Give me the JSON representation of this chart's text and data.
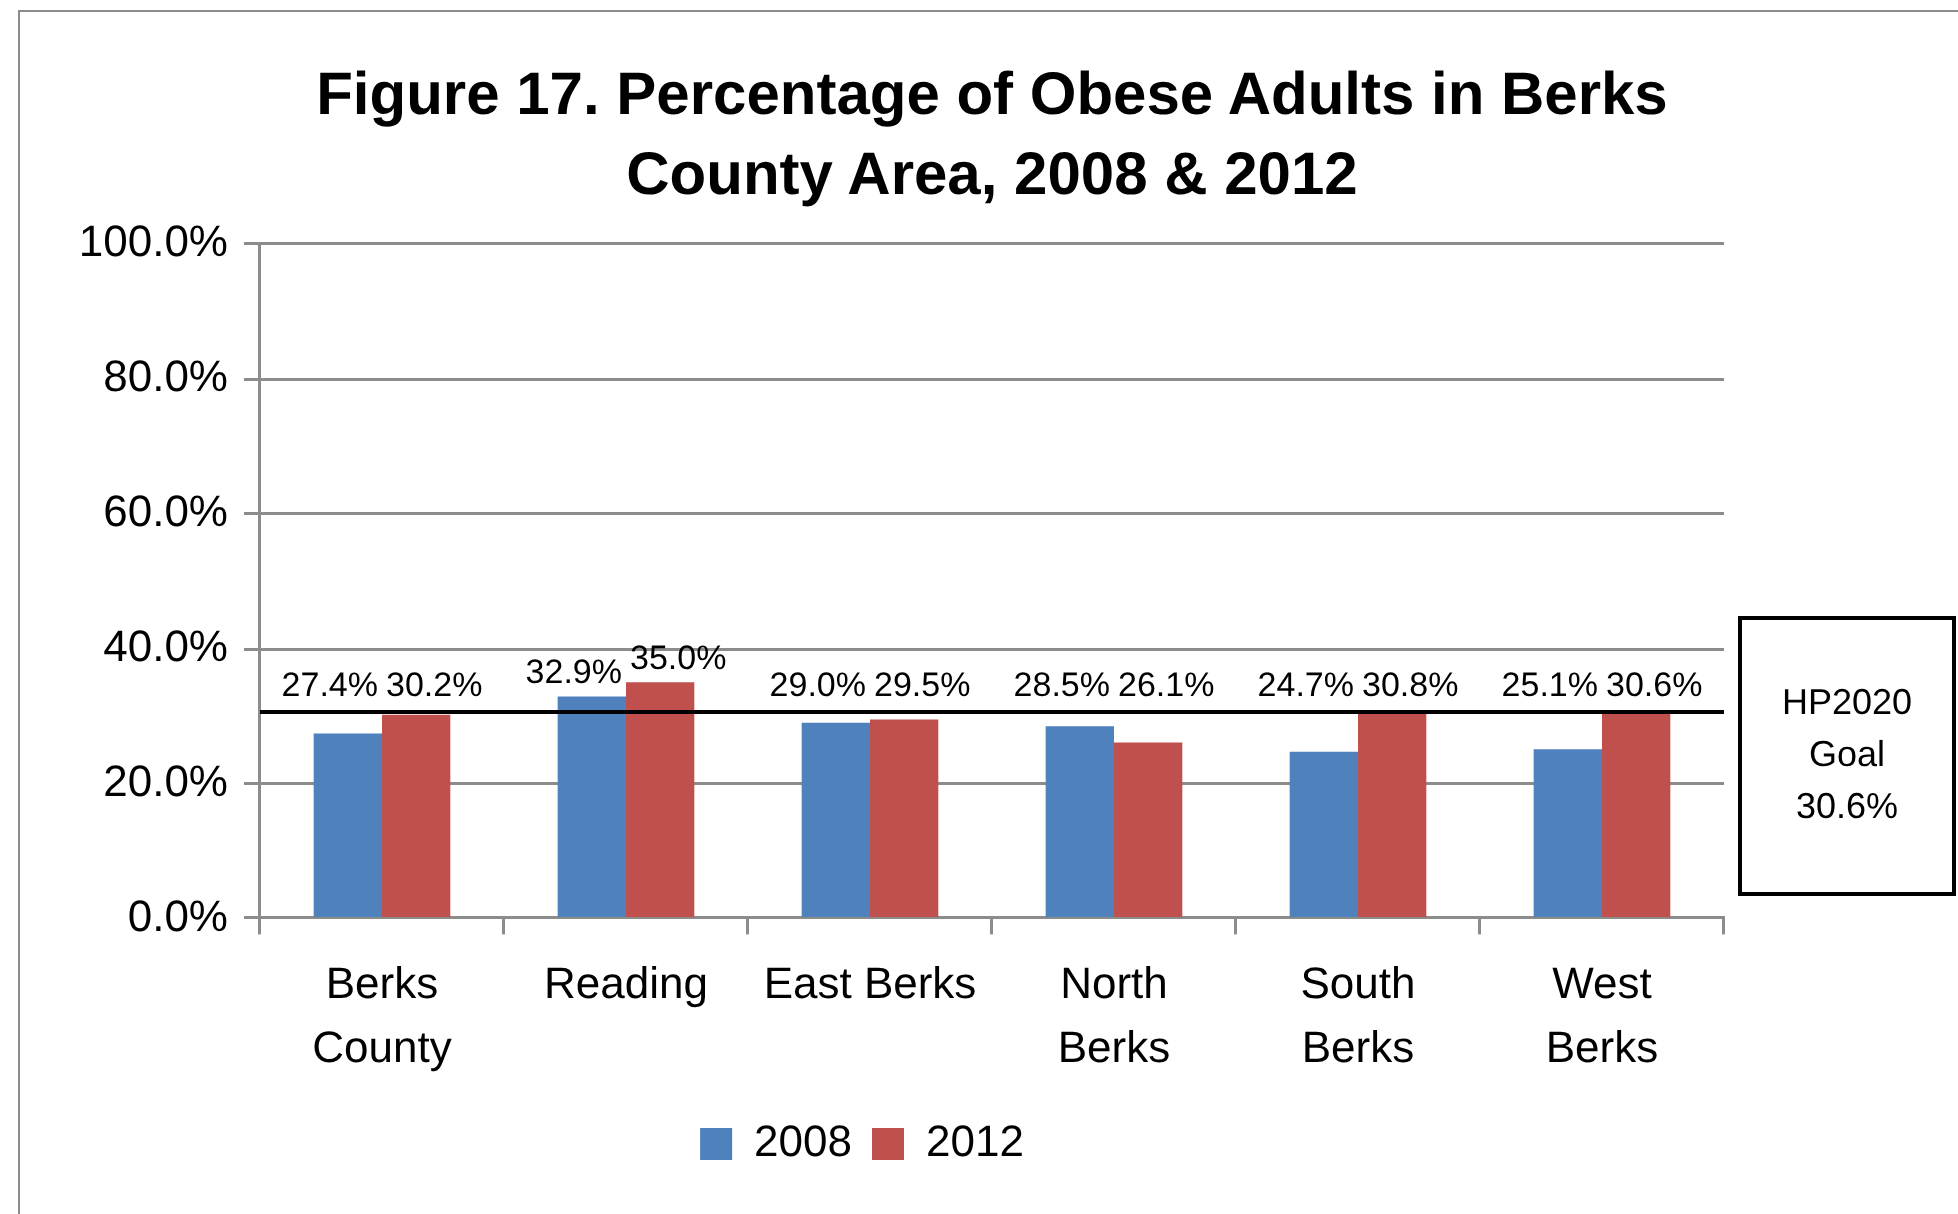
{
  "chart_data": {
    "type": "bar",
    "title": "Figure 17. Percentage of Obese Adults in Berks County Area, 2008 & 2012",
    "categories": [
      "Berks County",
      "Reading",
      "East Berks",
      "North Berks",
      "South Berks",
      "West Berks"
    ],
    "series": [
      {
        "name": "2008",
        "color": "#4f81bd",
        "values": [
          27.4,
          32.9,
          29.0,
          28.5,
          24.7,
          25.1
        ],
        "value_labels": [
          "27.4%",
          "32.9%",
          "29.0%",
          "28.5%",
          "24.7%",
          "25.1%"
        ]
      },
      {
        "name": "2012",
        "color": "#c0504d",
        "values": [
          30.2,
          35.0,
          29.5,
          26.1,
          30.8,
          30.6
        ],
        "value_labels": [
          "30.2%",
          "35.0%",
          "29.5%",
          "26.1%",
          "30.8%",
          "30.6%"
        ]
      }
    ],
    "ylim": [
      0,
      100
    ],
    "yticks": [
      {
        "value": 0,
        "label": "0.0%"
      },
      {
        "value": 20,
        "label": "20.0%"
      },
      {
        "value": 40,
        "label": "40.0%"
      },
      {
        "value": 60,
        "label": "60.0%"
      },
      {
        "value": 80,
        "label": "80.0%"
      },
      {
        "value": 100,
        "label": "100.0%"
      }
    ],
    "grid": "y",
    "legend": "bottom",
    "ref_lines": [
      {
        "axis": "y",
        "value": 30.6,
        "label": "HP2020 Goal 30.6%",
        "color": "#000000"
      }
    ]
  }
}
